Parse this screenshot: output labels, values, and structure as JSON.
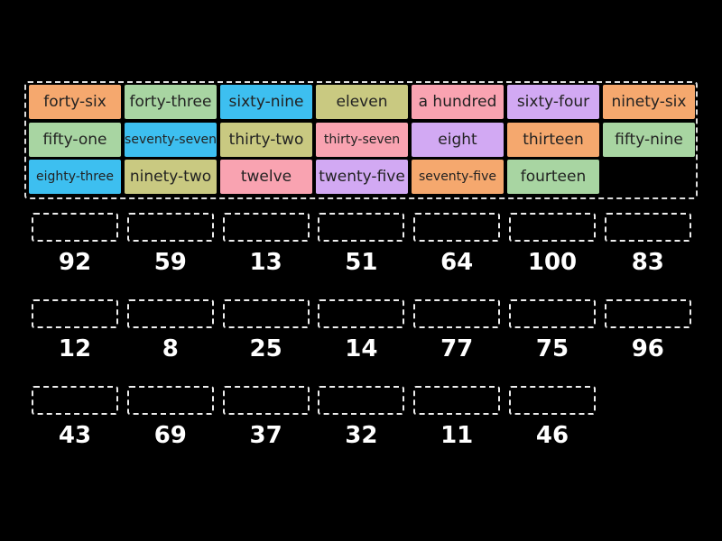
{
  "tiles": [
    {
      "label": "forty-six",
      "color": "#f5a86e"
    },
    {
      "label": "forty-three",
      "color": "#a8d5a2"
    },
    {
      "label": "sixty-nine",
      "color": "#3dbff0"
    },
    {
      "label": "eleven",
      "color": "#c9c981"
    },
    {
      "label": "a hundred",
      "color": "#f9a3b1"
    },
    {
      "label": "sixty-four",
      "color": "#d2a9f3"
    },
    {
      "label": "ninety-six",
      "color": "#f5a86e"
    },
    {
      "label": "fifty-one",
      "color": "#a8d5a2"
    },
    {
      "label": "seventy-seven",
      "color": "#3dbff0"
    },
    {
      "label": "thirty-two",
      "color": "#c9c981"
    },
    {
      "label": "thirty-seven",
      "color": "#f9a3b1"
    },
    {
      "label": "eight",
      "color": "#d2a9f3"
    },
    {
      "label": "thirteen",
      "color": "#f5a86e"
    },
    {
      "label": "fifty-nine",
      "color": "#a8d5a2"
    },
    {
      "label": "eighty-three",
      "color": "#3dbff0"
    },
    {
      "label": "ninety-two",
      "color": "#c9c981"
    },
    {
      "label": "twelve",
      "color": "#f9a3b1"
    },
    {
      "label": "twenty-five",
      "color": "#d2a9f3"
    },
    {
      "label": "seventy-five",
      "color": "#f5a86e"
    },
    {
      "label": "fourteen",
      "color": "#a8d5a2"
    }
  ],
  "targets": [
    [
      92,
      59,
      13,
      51,
      64,
      100,
      83
    ],
    [
      12,
      8,
      25,
      14,
      77,
      75,
      96
    ],
    [
      43,
      69,
      37,
      32,
      11,
      46
    ]
  ]
}
